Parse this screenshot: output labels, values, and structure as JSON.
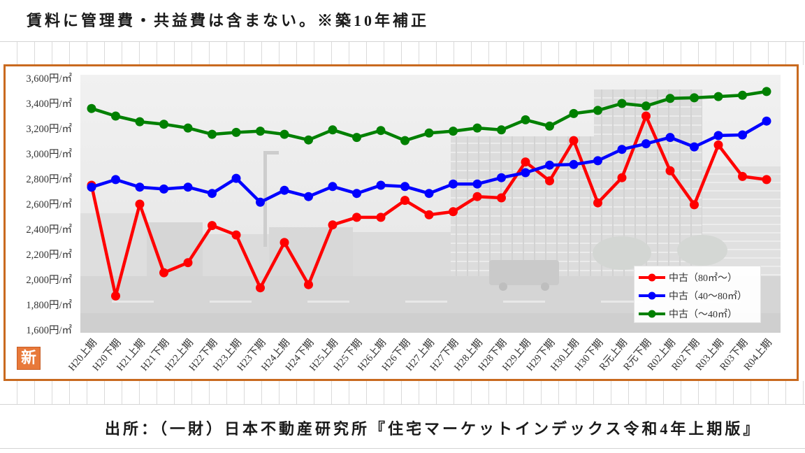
{
  "header_note": "賃料に管理費・共益費は含まない。※築10年補正",
  "source_note": "出所：（一財）日本不動産研究所『住宅マーケットインデックス令和4年上期版』",
  "badge": {
    "label": "新"
  },
  "colors": {
    "frame_border": "#c96a1f",
    "badge": "#e8793a"
  },
  "chart_data": {
    "type": "line",
    "categories": [
      "H20上期",
      "H20下期",
      "H21上期",
      "H21下期",
      "H22上期",
      "H22下期",
      "H23上期",
      "H23下期",
      "H24上期",
      "H24下期",
      "H25上期",
      "H25下期",
      "H26上期",
      "H26下期",
      "H27上期",
      "H27下期",
      "H28上期",
      "H28下期",
      "H29上期",
      "H29下期",
      "H30上期",
      "H30下期",
      "R元上期",
      "R元下期",
      "R02上期",
      "R02下期",
      "R03上期",
      "R03下期",
      "R04上期"
    ],
    "series": [
      {
        "name": "中古（80㎡～）",
        "color": "#ff0000",
        "values": [
          2750,
          1870,
          2600,
          2055,
          2135,
          2430,
          2355,
          1935,
          2295,
          1960,
          2435,
          2495,
          2495,
          2630,
          2515,
          2540,
          2660,
          2650,
          2935,
          2785,
          3105,
          2610,
          2810,
          3300,
          2865,
          2595,
          3070,
          2820,
          2795
        ]
      },
      {
        "name": "中古（40～80㎡）",
        "color": "#0000ff",
        "values": [
          2735,
          2795,
          2735,
          2720,
          2735,
          2685,
          2805,
          2615,
          2710,
          2660,
          2740,
          2685,
          2750,
          2740,
          2685,
          2760,
          2760,
          2810,
          2850,
          2910,
          2915,
          2945,
          3035,
          3080,
          3130,
          3055,
          3145,
          3150,
          3260
        ]
      },
      {
        "name": "中古（～40㎡）",
        "color": "#008000",
        "values": [
          3360,
          3300,
          3255,
          3235,
          3205,
          3155,
          3170,
          3180,
          3155,
          3110,
          3190,
          3130,
          3185,
          3105,
          3165,
          3180,
          3205,
          3190,
          3270,
          3220,
          3320,
          3345,
          3400,
          3380,
          3440,
          3445,
          3455,
          3465,
          3495
        ]
      }
    ],
    "ylim": [
      1600,
      3600
    ],
    "yticks": [
      1600,
      1800,
      2000,
      2200,
      2400,
      2600,
      2800,
      3000,
      3200,
      3400,
      3600
    ],
    "ytick_labels": [
      "1,600円/㎡",
      "1,800円/㎡",
      "2,000円/㎡",
      "2,200円/㎡",
      "2,400円/㎡",
      "2,600円/㎡",
      "2,800円/㎡",
      "3,000円/㎡",
      "3,200円/㎡",
      "3,400円/㎡",
      "3,600円/㎡"
    ],
    "legend_position": "bottom-right",
    "grid": false
  }
}
